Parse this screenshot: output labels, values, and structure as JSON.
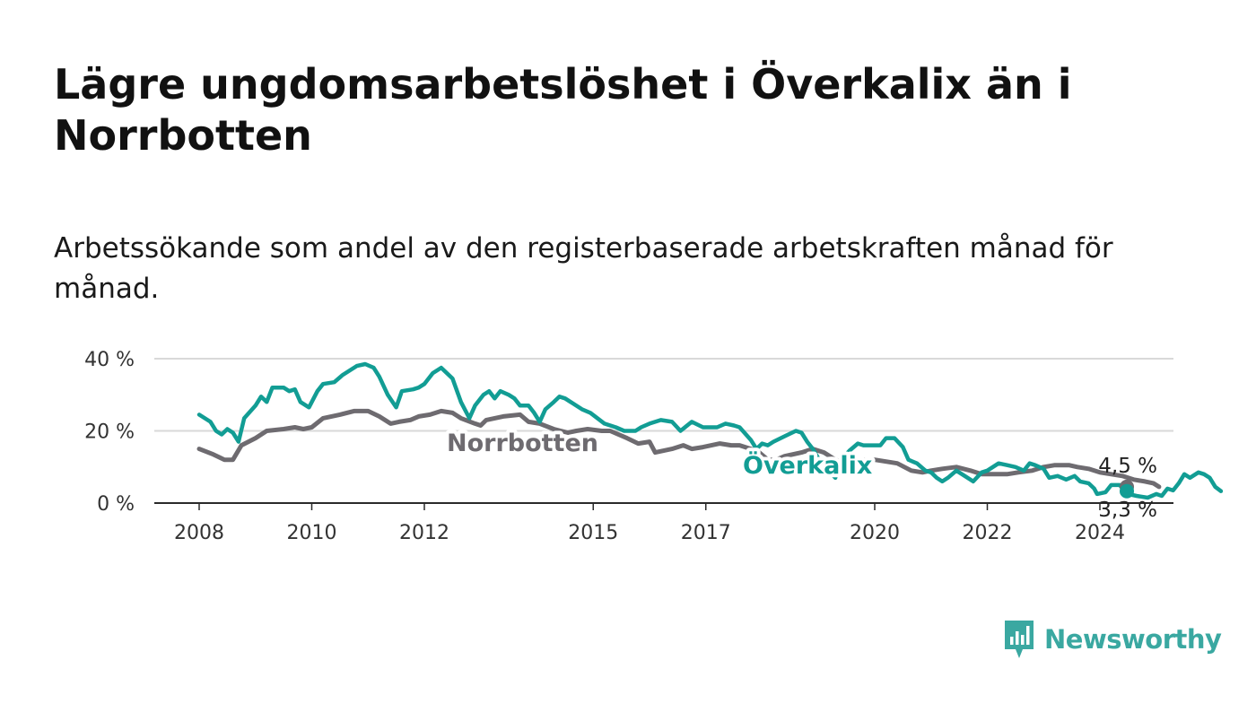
{
  "title": "Lägre ungdomsarbetslöshet i Överkalix än i Norrbotten",
  "subtitle": "Arbetssökande som andel av den registerbaserade arbetskraften månad för månad.",
  "brand": {
    "name": "Newsworthy",
    "color": "#3aa8a1",
    "icon": "bar-chart-logo-icon"
  },
  "chart_data": {
    "type": "line",
    "y_ticks": [
      {
        "value": 0,
        "label": "0 %"
      },
      {
        "value": 20,
        "label": "20 %"
      },
      {
        "value": 40,
        "label": "40 %"
      }
    ],
    "x_ticks": [
      {
        "value": 2008,
        "label": "2008"
      },
      {
        "value": 2010,
        "label": "2010"
      },
      {
        "value": 2012,
        "label": "2012"
      },
      {
        "value": 2015,
        "label": "2015"
      },
      {
        "value": 2017,
        "label": "2017"
      },
      {
        "value": 2020,
        "label": "2020"
      },
      {
        "value": 2022,
        "label": "2022"
      },
      {
        "value": 2024,
        "label": "2024"
      }
    ],
    "xlim": [
      2007.2,
      2025.4
    ],
    "ylim": [
      0,
      40
    ],
    "grid": true,
    "series": [
      {
        "name": "Norrbotten",
        "color": "#6e6b70",
        "end_label": "4,5 %",
        "points": [
          [
            2008.0,
            15
          ],
          [
            2008.25,
            13.5
          ],
          [
            2008.45,
            12
          ],
          [
            2008.6,
            12
          ],
          [
            2008.75,
            16
          ],
          [
            2009.0,
            18
          ],
          [
            2009.2,
            20
          ],
          [
            2009.5,
            20.5
          ],
          [
            2009.7,
            21
          ],
          [
            2009.85,
            20.5
          ],
          [
            2010.0,
            21
          ],
          [
            2010.2,
            23.5
          ],
          [
            2010.5,
            24.5
          ],
          [
            2010.75,
            25.5
          ],
          [
            2011.0,
            25.5
          ],
          [
            2011.2,
            24
          ],
          [
            2011.4,
            22
          ],
          [
            2011.55,
            22.5
          ],
          [
            2011.75,
            23
          ],
          [
            2011.9,
            24
          ],
          [
            2012.1,
            24.5
          ],
          [
            2012.3,
            25.5
          ],
          [
            2012.5,
            25
          ],
          [
            2012.65,
            23.5
          ],
          [
            2012.9,
            22
          ],
          [
            2013.0,
            21.5
          ],
          [
            2013.1,
            23
          ],
          [
            2013.4,
            24
          ],
          [
            2013.7,
            24.5
          ],
          [
            2013.85,
            22.5
          ],
          [
            2014.05,
            22
          ],
          [
            2014.3,
            20.5
          ],
          [
            2014.55,
            19.5
          ],
          [
            2014.7,
            20
          ],
          [
            2014.9,
            20.5
          ],
          [
            2015.15,
            20
          ],
          [
            2015.3,
            20
          ],
          [
            2015.6,
            18
          ],
          [
            2015.8,
            16.5
          ],
          [
            2016.0,
            17
          ],
          [
            2016.1,
            14
          ],
          [
            2016.4,
            15
          ],
          [
            2016.6,
            16
          ],
          [
            2016.75,
            15
          ],
          [
            2016.95,
            15.5
          ],
          [
            2017.25,
            16.5
          ],
          [
            2017.45,
            16
          ],
          [
            2017.6,
            16
          ],
          [
            2017.8,
            15
          ],
          [
            2017.95,
            14
          ],
          [
            2018.1,
            12
          ],
          [
            2018.25,
            12
          ],
          [
            2018.4,
            13
          ],
          [
            2018.7,
            14
          ],
          [
            2018.9,
            15
          ],
          [
            2019.1,
            14
          ],
          [
            2019.3,
            12
          ],
          [
            2019.5,
            11
          ],
          [
            2019.7,
            11.5
          ],
          [
            2019.85,
            12
          ],
          [
            2020.0,
            12
          ],
          [
            2020.2,
            11.5
          ],
          [
            2020.4,
            11
          ],
          [
            2020.65,
            9
          ],
          [
            2020.85,
            8.5
          ],
          [
            2021.0,
            9
          ],
          [
            2021.2,
            9.5
          ],
          [
            2021.45,
            10
          ],
          [
            2021.7,
            9
          ],
          [
            2021.9,
            8
          ],
          [
            2022.1,
            8
          ],
          [
            2022.35,
            8
          ],
          [
            2022.55,
            8.5
          ],
          [
            2022.8,
            9
          ],
          [
            2023.0,
            10
          ],
          [
            2023.2,
            10.5
          ],
          [
            2023.45,
            10.5
          ],
          [
            2023.6,
            10
          ],
          [
            2023.8,
            9.5
          ],
          [
            2024.0,
            8.5
          ],
          [
            2024.2,
            8
          ],
          [
            2024.4,
            7.5
          ],
          [
            2024.6,
            6.5
          ],
          [
            2024.8,
            6
          ],
          [
            2024.95,
            5.5
          ],
          [
            2025.05,
            4.5
          ]
        ]
      },
      {
        "name": "Överkalix",
        "color": "#129d94",
        "end_label": "3,3 %",
        "points": [
          [
            2008.0,
            24.5
          ],
          [
            2008.2,
            22.5
          ],
          [
            2008.3,
            20
          ],
          [
            2008.4,
            19
          ],
          [
            2008.5,
            20.5
          ],
          [
            2008.6,
            19.5
          ],
          [
            2008.7,
            17
          ],
          [
            2008.8,
            23.5
          ],
          [
            2009.0,
            27
          ],
          [
            2009.1,
            29.5
          ],
          [
            2009.2,
            28
          ],
          [
            2009.3,
            32
          ],
          [
            2009.5,
            32
          ],
          [
            2009.6,
            31
          ],
          [
            2009.7,
            31.5
          ],
          [
            2009.8,
            28
          ],
          [
            2009.95,
            26.5
          ],
          [
            2010.1,
            31
          ],
          [
            2010.2,
            33
          ],
          [
            2010.4,
            33.5
          ],
          [
            2010.55,
            35.5
          ],
          [
            2010.7,
            37
          ],
          [
            2010.8,
            38
          ],
          [
            2010.95,
            38.5
          ],
          [
            2011.1,
            37.5
          ],
          [
            2011.2,
            35
          ],
          [
            2011.35,
            30
          ],
          [
            2011.5,
            26.5
          ],
          [
            2011.6,
            31
          ],
          [
            2011.8,
            31.5
          ],
          [
            2011.9,
            32
          ],
          [
            2012.0,
            33
          ],
          [
            2012.15,
            36
          ],
          [
            2012.3,
            37.5
          ],
          [
            2012.4,
            36
          ],
          [
            2012.5,
            34.5
          ],
          [
            2012.65,
            28
          ],
          [
            2012.8,
            23.5
          ],
          [
            2012.9,
            27
          ],
          [
            2013.05,
            30
          ],
          [
            2013.15,
            31
          ],
          [
            2013.25,
            29
          ],
          [
            2013.35,
            31
          ],
          [
            2013.5,
            30
          ],
          [
            2013.6,
            29
          ],
          [
            2013.7,
            27
          ],
          [
            2013.85,
            27
          ],
          [
            2013.95,
            25
          ],
          [
            2014.05,
            22.5
          ],
          [
            2014.15,
            26
          ],
          [
            2014.3,
            28
          ],
          [
            2014.4,
            29.5
          ],
          [
            2014.5,
            29
          ],
          [
            2014.6,
            28
          ],
          [
            2014.8,
            26
          ],
          [
            2014.95,
            25
          ],
          [
            2015.2,
            22
          ],
          [
            2015.4,
            21
          ],
          [
            2015.55,
            20
          ],
          [
            2015.75,
            20
          ],
          [
            2015.85,
            21
          ],
          [
            2016.0,
            22
          ],
          [
            2016.2,
            23
          ],
          [
            2016.4,
            22.5
          ],
          [
            2016.55,
            20
          ],
          [
            2016.75,
            22.5
          ],
          [
            2016.95,
            21
          ],
          [
            2017.2,
            21
          ],
          [
            2017.35,
            22
          ],
          [
            2017.5,
            21.5
          ],
          [
            2017.6,
            21
          ],
          [
            2017.8,
            17.5
          ],
          [
            2017.9,
            15
          ],
          [
            2018.0,
            16.5
          ],
          [
            2018.1,
            16
          ],
          [
            2018.2,
            17
          ],
          [
            2018.4,
            18.5
          ],
          [
            2018.6,
            20
          ],
          [
            2018.7,
            19.5
          ],
          [
            2018.8,
            17
          ],
          [
            2018.9,
            15
          ],
          [
            2019.05,
            11
          ],
          [
            2019.15,
            9.5
          ],
          [
            2019.3,
            7
          ],
          [
            2019.4,
            12
          ],
          [
            2019.55,
            14.5
          ],
          [
            2019.7,
            16.5
          ],
          [
            2019.8,
            16
          ],
          [
            2019.95,
            16
          ],
          [
            2020.1,
            16
          ],
          [
            2020.2,
            18
          ],
          [
            2020.35,
            18
          ],
          [
            2020.5,
            15.5
          ],
          [
            2020.6,
            12
          ],
          [
            2020.75,
            11
          ],
          [
            2020.9,
            9
          ],
          [
            2021.0,
            8.5
          ],
          [
            2021.1,
            7
          ],
          [
            2021.2,
            6
          ],
          [
            2021.3,
            7
          ],
          [
            2021.45,
            9
          ],
          [
            2021.6,
            7.5
          ],
          [
            2021.75,
            6
          ],
          [
            2021.9,
            8.5
          ],
          [
            2022.0,
            9
          ],
          [
            2022.2,
            11
          ],
          [
            2022.35,
            10.5
          ],
          [
            2022.5,
            10
          ],
          [
            2022.65,
            9
          ],
          [
            2022.75,
            11
          ],
          [
            2022.85,
            10.5
          ],
          [
            2023.0,
            9.5
          ],
          [
            2023.1,
            7
          ],
          [
            2023.25,
            7.5
          ],
          [
            2023.4,
            6.5
          ],
          [
            2023.55,
            7.5
          ],
          [
            2023.65,
            6
          ],
          [
            2023.8,
            5.5
          ],
          [
            2023.9,
            4
          ],
          [
            2023.95,
            2.5
          ],
          [
            2024.1,
            3
          ],
          [
            2024.2,
            5
          ],
          [
            2024.35,
            5
          ],
          [
            2024.5,
            2.5
          ],
          [
            2024.65,
            2
          ],
          [
            2024.85,
            1.5
          ],
          [
            2025.0,
            2.5
          ],
          [
            2025.1,
            2
          ],
          [
            2025.2,
            4
          ],
          [
            2025.3,
            3.5
          ],
          [
            2025.4,
            5.5
          ],
          [
            2025.5,
            8
          ],
          [
            2025.6,
            7
          ],
          [
            2025.75,
            8.5
          ],
          [
            2025.85,
            8
          ],
          [
            2025.95,
            7
          ],
          [
            2026.05,
            4.5
          ],
          [
            2026.15,
            3.3
          ]
        ]
      }
    ],
    "labels": [
      {
        "text": "Överkalix",
        "series": 1
      },
      {
        "text": "Norrbotten",
        "series": 0
      }
    ]
  }
}
